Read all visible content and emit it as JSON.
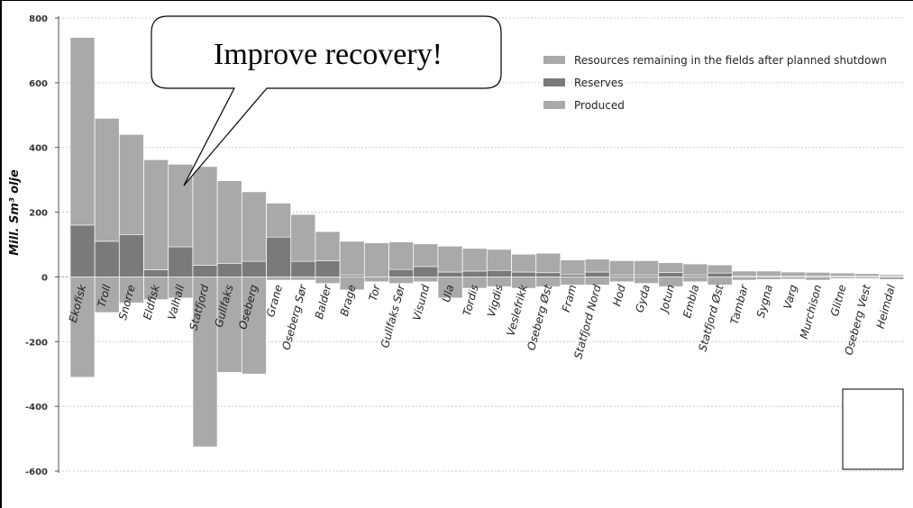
{
  "chart_data": {
    "type": "bar",
    "stacked": true,
    "ylabel": "Mill. Sm³ olje",
    "ylim": [
      -600,
      800
    ],
    "yticks": [
      "800",
      "600",
      "400",
      "200",
      "0",
      "-200",
      "-400",
      "-600"
    ],
    "ytick_values": [
      800,
      600,
      400,
      200,
      0,
      -200,
      -400,
      -600
    ],
    "grid": true,
    "legend_position": "top-right",
    "categories": [
      "Ekofisk",
      "Troll",
      "Snorre",
      "Eldfisk",
      "Valhall",
      "Statfjord",
      "Gullfaks",
      "Oseberg",
      "Grane",
      "Oseberg Sør",
      "Balder",
      "Brage",
      "Tor",
      "Gullfaks Sør",
      "Visund",
      "Ula",
      "Tordis",
      "Vigdis",
      "Veslefrikk",
      "Oseberg Øst",
      "Fram",
      "Statfjord Nord",
      "Hod",
      "Gyda",
      "Jotun",
      "Embla",
      "Statfjord Øst",
      "Tambar",
      "Sygna",
      "Varg",
      "Murchison",
      "Glitne",
      "Oseberg Vest",
      "Heimdal"
    ],
    "series": [
      {
        "name": "Resources remaining in the fields after planned shutdown",
        "color": "#a9a9a9",
        "values": [
          580,
          380,
          310,
          340,
          255,
          305,
          255,
          215,
          105,
          145,
          90,
          105,
          105,
          85,
          70,
          80,
          70,
          65,
          55,
          60,
          45,
          40,
          45,
          45,
          30,
          35,
          25,
          15,
          15,
          13,
          12,
          10,
          8,
          5
        ]
      },
      {
        "name": "Reserves",
        "color": "#7a7a7a",
        "values": [
          160,
          110,
          130,
          22,
          93,
          36,
          42,
          48,
          123,
          48,
          50,
          5,
          0,
          23,
          32,
          15,
          18,
          20,
          15,
          13,
          7,
          15,
          5,
          5,
          14,
          5,
          12,
          3,
          3,
          2,
          2,
          2,
          2,
          2
        ]
      },
      {
        "name": "Produced",
        "color": "#a9a9a9",
        "values": [
          -310,
          -110,
          -80,
          -70,
          -65,
          -525,
          -295,
          -300,
          -10,
          -10,
          -20,
          -40,
          -15,
          -20,
          -15,
          -65,
          -35,
          -30,
          -35,
          -30,
          -25,
          -25,
          -15,
          -20,
          -30,
          -15,
          -25,
          -10,
          -8,
          -7,
          -10,
          -5,
          -5,
          -8
        ]
      }
    ]
  },
  "callout": {
    "text": "Improve recovery!"
  }
}
